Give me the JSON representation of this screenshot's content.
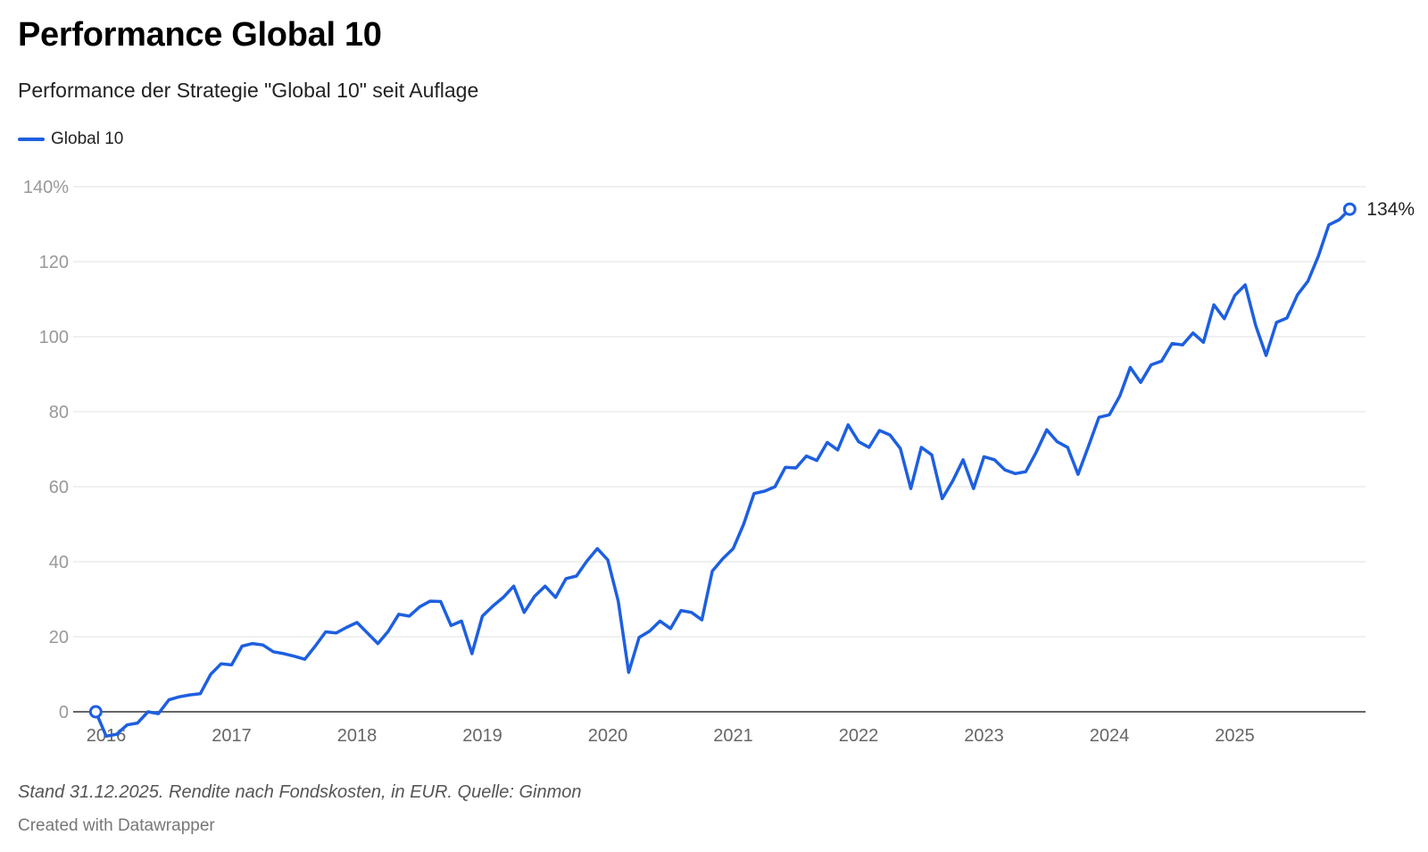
{
  "header": {
    "title": "Performance Global 10",
    "subtitle": "Performance der Strategie \"Global 10\" seit Auflage"
  },
  "footer": {
    "note": "Stand 31.12.2025. Rendite nach Fondskosten, in EUR. Quelle: Ginmon",
    "credit": "Created with Datawrapper"
  },
  "colors": {
    "series": "#1d5fe0",
    "grid": "#e0e0e0",
    "baseline": "#333333",
    "tick_text": "#999999",
    "year_text": "#666666"
  },
  "chart_data": {
    "type": "line",
    "title": "Performance Global 10",
    "subtitle": "Performance der Strategie \"Global 10\" seit Auflage",
    "legend": "top-left",
    "grid": true,
    "y_unit": "%",
    "ylim": [
      0,
      140
    ],
    "y_ticks": [
      "140%",
      "120",
      "100",
      "80",
      "60",
      "40",
      "20",
      "0"
    ],
    "y_tick_values": [
      140,
      120,
      100,
      80,
      60,
      40,
      20,
      0
    ],
    "x_ticks": [
      "2016",
      "2017",
      "2018",
      "2019",
      "2020",
      "2021",
      "2022",
      "2023",
      "2024",
      "2025"
    ],
    "end_label": "134%",
    "series": [
      {
        "name": "Global 10",
        "points": [
          [
            "2015-12",
            0
          ],
          [
            "2016-01",
            -6.5
          ],
          [
            "2016-02",
            -6
          ],
          [
            "2016-03",
            -3.5
          ],
          [
            "2016-04",
            -3
          ],
          [
            "2016-05",
            0
          ],
          [
            "2016-06",
            -0.5
          ],
          [
            "2016-07",
            3.2
          ],
          [
            "2016-08",
            4
          ],
          [
            "2016-09",
            4.5
          ],
          [
            "2016-10",
            4.8
          ],
          [
            "2016-11",
            10
          ],
          [
            "2016-12",
            12.8
          ],
          [
            "2017-01",
            12.5
          ],
          [
            "2017-02",
            17.5
          ],
          [
            "2017-03",
            18.2
          ],
          [
            "2017-04",
            17.8
          ],
          [
            "2017-05",
            16
          ],
          [
            "2017-06",
            15.5
          ],
          [
            "2017-07",
            14.8
          ],
          [
            "2017-08",
            14
          ],
          [
            "2017-09",
            17.5
          ],
          [
            "2017-10",
            21.3
          ],
          [
            "2017-11",
            21
          ],
          [
            "2017-12",
            22.5
          ],
          [
            "2018-01",
            23.8
          ],
          [
            "2018-02",
            21
          ],
          [
            "2018-03",
            18.2
          ],
          [
            "2018-04",
            21.5
          ],
          [
            "2018-05",
            26
          ],
          [
            "2018-06",
            25.5
          ],
          [
            "2018-07",
            28
          ],
          [
            "2018-08",
            29.5
          ],
          [
            "2018-09",
            29.4
          ],
          [
            "2018-10",
            23
          ],
          [
            "2018-11",
            24.2
          ],
          [
            "2018-12",
            15.5
          ],
          [
            "2019-01",
            25.5
          ],
          [
            "2019-02",
            28.2
          ],
          [
            "2019-03",
            30.5
          ],
          [
            "2019-04",
            33.5
          ],
          [
            "2019-05",
            26.5
          ],
          [
            "2019-06",
            30.8
          ],
          [
            "2019-07",
            33.5
          ],
          [
            "2019-08",
            30.5
          ],
          [
            "2019-09",
            35.5
          ],
          [
            "2019-10",
            36.2
          ],
          [
            "2019-11",
            40.2
          ],
          [
            "2019-12",
            43.5
          ],
          [
            "2020-01",
            40.5
          ],
          [
            "2020-02",
            29.5
          ],
          [
            "2020-03",
            10.5
          ],
          [
            "2020-04",
            19.8
          ],
          [
            "2020-05",
            21.5
          ],
          [
            "2020-06",
            24.2
          ],
          [
            "2020-07",
            22.2
          ],
          [
            "2020-08",
            27
          ],
          [
            "2020-09",
            26.5
          ],
          [
            "2020-10",
            24.5
          ],
          [
            "2020-11",
            37.5
          ],
          [
            "2020-12",
            40.8
          ],
          [
            "2021-01",
            43.5
          ],
          [
            "2021-02",
            50
          ],
          [
            "2021-03",
            58.2
          ],
          [
            "2021-04",
            58.8
          ],
          [
            "2021-05",
            60
          ],
          [
            "2021-06",
            65.2
          ],
          [
            "2021-07",
            65
          ],
          [
            "2021-08",
            68.2
          ],
          [
            "2021-09",
            67
          ],
          [
            "2021-10",
            71.8
          ],
          [
            "2021-11",
            69.8
          ],
          [
            "2021-12",
            76.5
          ],
          [
            "2022-01",
            72
          ],
          [
            "2022-02",
            70.5
          ],
          [
            "2022-03",
            75
          ],
          [
            "2022-04",
            73.8
          ],
          [
            "2022-05",
            70.2
          ],
          [
            "2022-06",
            59.5
          ],
          [
            "2022-07",
            70.5
          ],
          [
            "2022-08",
            68.5
          ],
          [
            "2022-09",
            56.8
          ],
          [
            "2022-10",
            61.5
          ],
          [
            "2022-11",
            67.2
          ],
          [
            "2022-12",
            59.5
          ],
          [
            "2023-01",
            68
          ],
          [
            "2023-02",
            67.2
          ],
          [
            "2023-03",
            64.5
          ],
          [
            "2023-04",
            63.5
          ],
          [
            "2023-05",
            64
          ],
          [
            "2023-06",
            69.2
          ],
          [
            "2023-07",
            75.2
          ],
          [
            "2023-08",
            72
          ],
          [
            "2023-09",
            70.5
          ],
          [
            "2023-10",
            63.3
          ],
          [
            "2023-11",
            70.8
          ],
          [
            "2023-12",
            78.5
          ],
          [
            "2024-01",
            79.2
          ],
          [
            "2024-02",
            84.2
          ],
          [
            "2024-03",
            91.8
          ],
          [
            "2024-04",
            87.8
          ],
          [
            "2024-05",
            92.5
          ],
          [
            "2024-06",
            93.5
          ],
          [
            "2024-07",
            98.2
          ],
          [
            "2024-08",
            97.8
          ],
          [
            "2024-09",
            101
          ],
          [
            "2024-10",
            98.5
          ],
          [
            "2024-11",
            108.5
          ],
          [
            "2024-12",
            104.8
          ],
          [
            "2025-01",
            111
          ],
          [
            "2025-02",
            113.8
          ],
          [
            "2025-03",
            103
          ],
          [
            "2025-04",
            95
          ],
          [
            "2025-05",
            103.8
          ],
          [
            "2025-06",
            105
          ],
          [
            "2025-07",
            111.2
          ],
          [
            "2025-08",
            114.8
          ],
          [
            "2025-09",
            121.5
          ],
          [
            "2025-10",
            129.8
          ],
          [
            "2025-11",
            131.2
          ],
          [
            "2025-12",
            134
          ]
        ]
      }
    ]
  }
}
